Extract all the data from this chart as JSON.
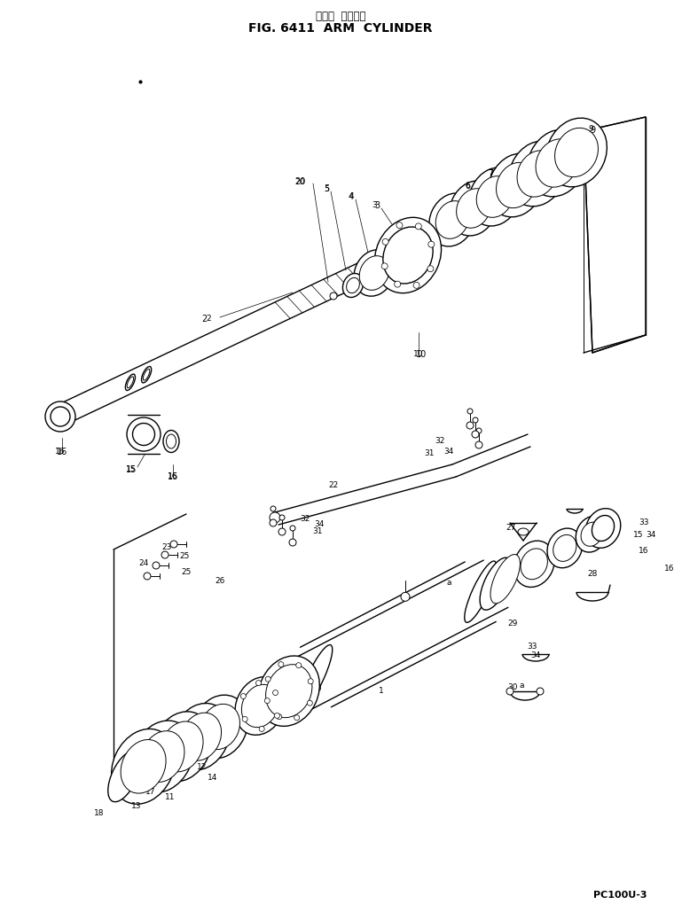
{
  "title_japanese": "アーム  シリンダ",
  "title_english": "FIG. 6411  ARM  CYLINDER",
  "model": "PC100U-3",
  "bg": "#ffffff",
  "lc": "#000000",
  "fig_width": 7.69,
  "fig_height": 10.29,
  "dpi": 100
}
